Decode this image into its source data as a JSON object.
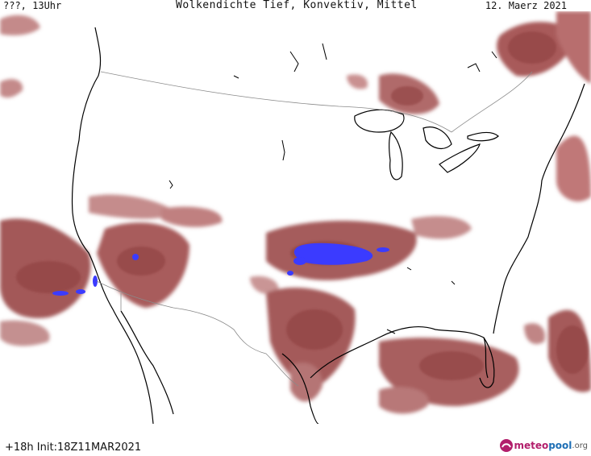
{
  "header": {
    "left": "???, 13Uhr",
    "title": "Wolkendichte   Tief, Konvektiv, Mittel",
    "date": "12. Maerz 2021"
  },
  "footer": {
    "run": "+18h  Init:18Z11MAR2021",
    "brand_part1": "meteo",
    "brand_part2": "pool",
    "brand_part3": ".org"
  },
  "colors": {
    "cloud_dark": "#9b4a4a",
    "cloud_mid": "#b56a6a",
    "cloud_light": "#d4a3a3",
    "convective": "#3a3aff",
    "coast": "#000000",
    "border": "#8a8a8a"
  },
  "legend_icons": [
    "meteopool-logo-icon"
  ]
}
